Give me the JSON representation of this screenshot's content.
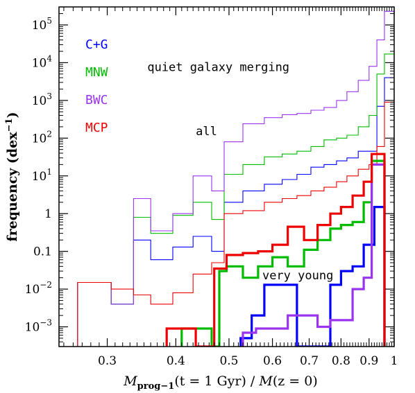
{
  "chart_data": {
    "type": "line",
    "title": "",
    "xlabel": "M_prog−1(t = 1 Gyr) / M(z = 0)",
    "xlabel_parts": {
      "sym1": "M",
      "sub": "prog−1",
      "mid": "(t = 1 Gyr) / ",
      "sym2": "M",
      "tail": "(z = 0)"
    },
    "ylabel": "frequency (dex",
    "ylabel_sup": "−1",
    "ylabel_close": ")",
    "xscale": "log",
    "yscale": "log",
    "xlim": [
      0.245,
      1.0
    ],
    "ylim": [
      0.0003,
      300000
    ],
    "grid": false,
    "legend_position": "top-left",
    "xticks": [
      {
        "value": 0.3,
        "label": "0.3"
      },
      {
        "value": 0.4,
        "label": "0.4"
      },
      {
        "value": 0.5,
        "label": "0.5"
      },
      {
        "value": 0.6,
        "label": "0.6"
      },
      {
        "value": 0.7,
        "label": "0.7"
      },
      {
        "value": 0.8,
        "label": "0.8"
      },
      {
        "value": 0.9,
        "label": "0.9"
      },
      {
        "value": 1.0,
        "label": "1"
      }
    ],
    "yticks": [
      {
        "value": 0.001,
        "base": "10",
        "exp": "−3"
      },
      {
        "value": 0.01,
        "base": "10",
        "exp": "−2"
      },
      {
        "value": 0.1,
        "base": "0.1",
        "exp": ""
      },
      {
        "value": 1,
        "base": "1",
        "exp": ""
      },
      {
        "value": 10,
        "base": "10",
        "exp": "1"
      },
      {
        "value": 100,
        "base": "10",
        "exp": "2"
      },
      {
        "value": 1000,
        "base": "10",
        "exp": "3"
      },
      {
        "value": 10000,
        "base": "10",
        "exp": "4"
      },
      {
        "value": 100000,
        "base": "10",
        "exp": "5"
      }
    ],
    "legend": [
      {
        "label": "C+G",
        "color": "#0000ff"
      },
      {
        "label": "MNW",
        "color": "#00bb00"
      },
      {
        "label": "BWC",
        "color": "#9933ee"
      },
      {
        "label": "MCP",
        "color": "#ee0000"
      }
    ],
    "annotations": [
      {
        "text": "quiet galaxy merging",
        "x": 0.355,
        "y": 6000
      },
      {
        "text": "all",
        "x": 0.435,
        "y": 120
      },
      {
        "text": "very young",
        "x": 0.575,
        "y": 0.018
      }
    ],
    "series": [
      {
        "name": "C+G",
        "subset": "all",
        "color": "#0000ff",
        "edges": [
          0.265,
          0.305,
          0.335,
          0.36,
          0.395,
          0.43,
          0.465,
          0.49,
          0.53,
          0.58,
          0.625,
          0.665,
          0.705,
          0.745,
          0.785,
          0.82,
          0.86,
          0.9,
          0.93,
          0.96,
          1.0
        ],
        "values": [
          0.015,
          0.004,
          0.2,
          0.06,
          0.13,
          0.25,
          0.1,
          2,
          4,
          6,
          8,
          11,
          17,
          20,
          25,
          30,
          45,
          45,
          700,
          4000
        ]
      },
      {
        "name": "MNW",
        "subset": "all",
        "color": "#00bb00",
        "edges": [
          0.265,
          0.305,
          0.335,
          0.36,
          0.395,
          0.43,
          0.465,
          0.49,
          0.53,
          0.58,
          0.625,
          0.665,
          0.705,
          0.745,
          0.785,
          0.82,
          0.86,
          0.9,
          0.93,
          0.96,
          1.0
        ],
        "values": [
          0.015,
          0.004,
          0.8,
          0.3,
          0.9,
          2,
          0.7,
          11,
          20,
          32,
          38,
          45,
          60,
          90,
          100,
          120,
          200,
          400,
          5000,
          17000
        ]
      },
      {
        "name": "BWC",
        "subset": "all",
        "color": "#9933ee",
        "edges": [
          0.265,
          0.305,
          0.335,
          0.36,
          0.395,
          0.43,
          0.465,
          0.49,
          0.53,
          0.58,
          0.625,
          0.665,
          0.705,
          0.745,
          0.785,
          0.82,
          0.86,
          0.9,
          0.93,
          0.96,
          1.0
        ],
        "values": [
          0.015,
          0.004,
          2.5,
          0.35,
          1,
          10,
          4,
          80,
          240,
          350,
          420,
          450,
          550,
          650,
          1000,
          1700,
          3400,
          8000,
          40000,
          230000
        ]
      },
      {
        "name": "MCP",
        "subset": "all",
        "color": "#ee0000",
        "edges": [
          0.265,
          0.305,
          0.335,
          0.36,
          0.395,
          0.43,
          0.465,
          0.49,
          0.53,
          0.58,
          0.625,
          0.665,
          0.705,
          0.745,
          0.785,
          0.82,
          0.86,
          0.9,
          0.93,
          0.96,
          1.0
        ],
        "values": [
          0.015,
          0.01,
          0.007,
          0.004,
          0.008,
          0.025,
          0.05,
          1,
          1.2,
          2,
          2.5,
          3,
          4,
          5,
          7,
          10,
          15,
          20,
          60,
          900
        ]
      },
      {
        "name": "C+G",
        "subset": "very young",
        "color": "#0000ff",
        "edges": [
          0.525,
          0.55,
          0.58,
          0.62,
          0.665,
          0.705,
          0.745,
          0.765,
          0.8,
          0.84,
          0.88,
          0.92,
          0.96
        ],
        "values": [
          0.0005,
          0.002,
          0.013,
          0.013,
          0.0003,
          0.0003,
          0.0003,
          0.013,
          0.03,
          0.04,
          0.15,
          1.5
        ]
      },
      {
        "name": "MNW",
        "subset": "very young",
        "color": "#00bb00",
        "edges": [
          0.41,
          0.435,
          0.465,
          0.48,
          0.495,
          0.53,
          0.565,
          0.6,
          0.64,
          0.685,
          0.725,
          0.765,
          0.8,
          0.84,
          0.88,
          0.91,
          0.96
        ],
        "values": [
          0.0009,
          0.0009,
          0.0003,
          0.03,
          0.04,
          0.02,
          0.04,
          0.07,
          0.04,
          0.11,
          0.2,
          0.4,
          0.5,
          0.6,
          2,
          25
        ]
      },
      {
        "name": "BWC",
        "subset": "very young",
        "color": "#9933ee",
        "edges": [
          0.53,
          0.56,
          0.6,
          0.64,
          0.685,
          0.725,
          0.765,
          0.8,
          0.84,
          0.88,
          0.91,
          0.96
        ],
        "values": [
          0.0007,
          0.0009,
          0.0009,
          0.002,
          0.002,
          0.001,
          0.0015,
          0.0015,
          0.01,
          0.02,
          20
        ]
      },
      {
        "name": "MCP",
        "subset": "very young",
        "color": "#ee0000",
        "edges": [
          0.385,
          0.41,
          0.435,
          0.47,
          0.495,
          0.53,
          0.565,
          0.6,
          0.64,
          0.685,
          0.725,
          0.765,
          0.8,
          0.84,
          0.88,
          0.91,
          0.96
        ],
        "values": [
          0.0009,
          0.0009,
          0.0003,
          0.035,
          0.08,
          0.09,
          0.1,
          0.15,
          0.45,
          0.2,
          0.5,
          1,
          1.5,
          3,
          7,
          38
        ]
      }
    ]
  }
}
